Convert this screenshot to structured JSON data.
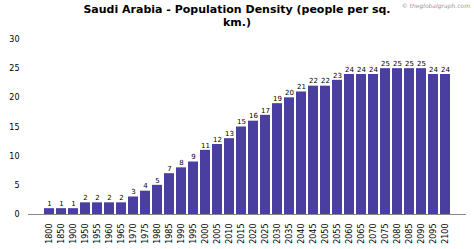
{
  "chart_data": {
    "type": "bar",
    "title": "Saudi Arabia - Population Density (people per sq.\nkm.)",
    "categories": [
      "1800",
      "1850",
      "1900",
      "1950",
      "1955",
      "1960",
      "1965",
      "1970",
      "1975",
      "1980",
      "1985",
      "1990",
      "1995",
      "2000",
      "2005",
      "2010",
      "2015",
      "2020",
      "2025",
      "2030",
      "2035",
      "2040",
      "2045",
      "2050",
      "2055",
      "2060",
      "2065",
      "2070",
      "2075",
      "2080",
      "2085",
      "2090",
      "2095",
      "2100"
    ],
    "values": [
      1,
      1,
      1,
      2,
      2,
      2,
      2,
      3,
      4,
      5,
      7,
      8,
      9,
      11,
      12,
      13,
      15,
      16,
      17,
      19,
      20,
      21,
      22,
      22,
      23,
      24,
      24,
      24,
      25,
      25,
      25,
      25,
      24,
      24
    ],
    "color": "#4a3fa0",
    "ylim": [
      0,
      30
    ],
    "yticks": [
      0,
      5,
      10,
      15,
      20,
      25,
      30
    ],
    "grid": false,
    "data_labels": true,
    "annotations": [
      "© theglobalgraph.com"
    ]
  }
}
